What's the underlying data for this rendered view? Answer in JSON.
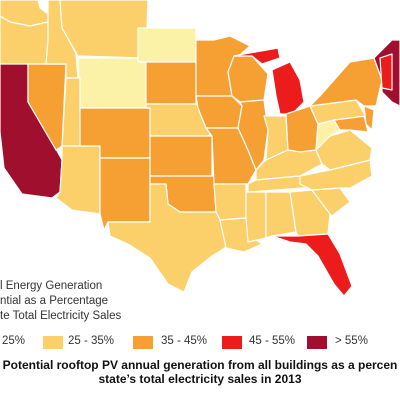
{
  "legend": {
    "title_lines": [
      "l Energy Generation",
      "ntial as a Percentage",
      "te Total Electricity Sales"
    ],
    "bins": [
      {
        "label": "25%",
        "color": "#ffe08a"
      },
      {
        "label": "25 - 35%",
        "color": "#fbd06a"
      },
      {
        "label": "35 - 45%",
        "color": "#f6a033"
      },
      {
        "label": "45 - 55%",
        "color": "#ec1c1c"
      },
      {
        "label": "> 55%",
        "color": "#a0102e"
      }
    ]
  },
  "caption": {
    "line1": "Potential rooftop PV annual generation from all buildings as a percen",
    "line2": "state’s total electricity sales in 2013"
  },
  "colors": {
    "pale": "#fbf2a8",
    "light": "#fbd06a",
    "orange": "#f6a033",
    "red": "#ec1c1c",
    "darkred": "#a0102e"
  }
}
